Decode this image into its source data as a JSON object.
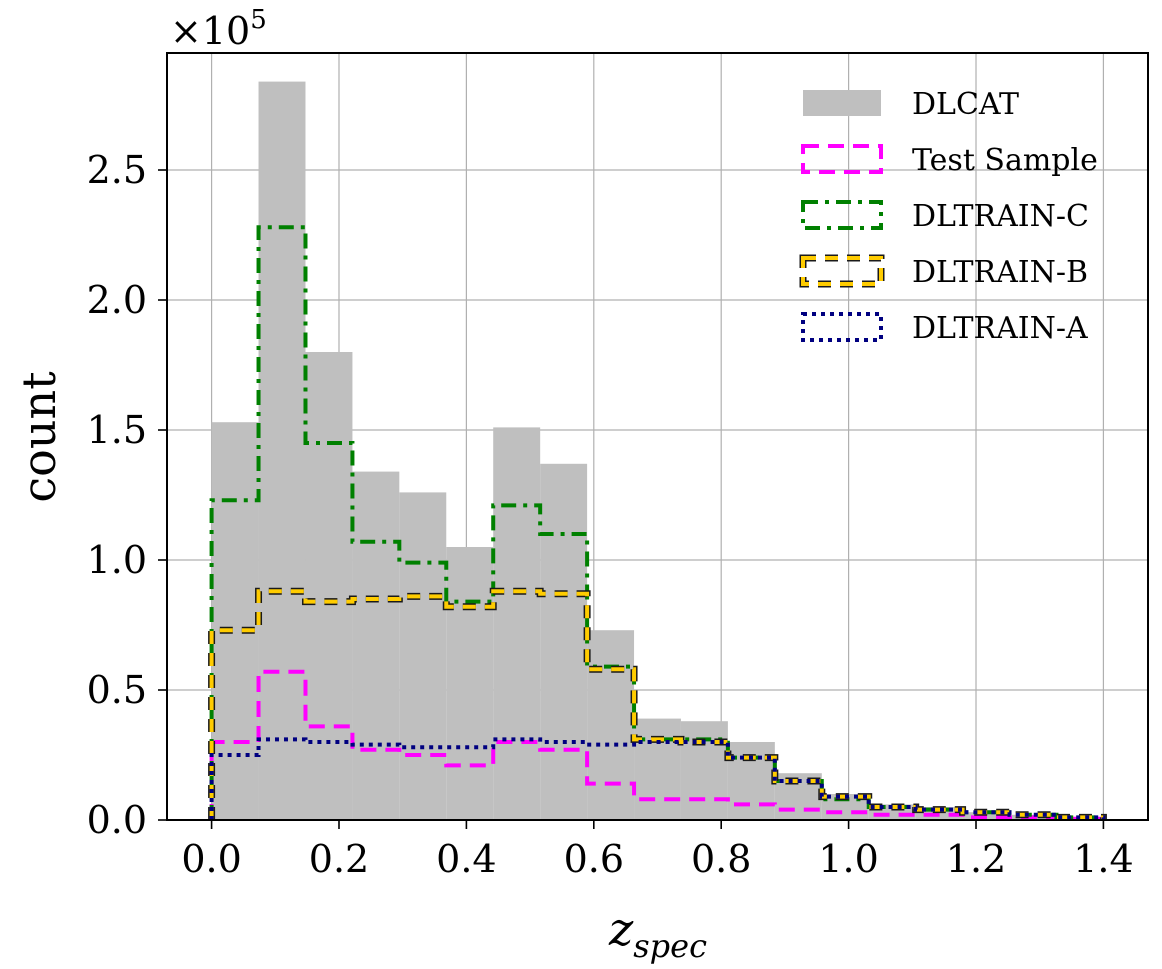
{
  "chart_data": {
    "type": "bar",
    "xlabel": "z",
    "xlabel_sub": "spec",
    "ylabel": "count",
    "y_multiplier_label": "×10",
    "y_multiplier_exp": "5",
    "xlim": [
      -0.07,
      1.47
    ],
    "ylim": [
      0,
      2.95
    ],
    "x_ticks": [
      0.0,
      0.2,
      0.4,
      0.6,
      0.8,
      1.0,
      1.2,
      1.4
    ],
    "x_tick_labels": [
      "0.0",
      "0.2",
      "0.4",
      "0.6",
      "0.8",
      "1.0",
      "1.2",
      "1.4"
    ],
    "y_ticks": [
      0.0,
      0.5,
      1.0,
      1.5,
      2.0,
      2.5
    ],
    "y_tick_labels": [
      "0.0",
      "0.5",
      "1.0",
      "1.5",
      "2.0",
      "2.5"
    ],
    "grid": true,
    "legend_position": "top-right",
    "bin_edges": [
      0.0,
      0.0737,
      0.1474,
      0.2211,
      0.2947,
      0.3684,
      0.4421,
      0.5158,
      0.5895,
      0.6632,
      0.7368,
      0.8105,
      0.8842,
      0.9579,
      1.0316,
      1.1053,
      1.1789,
      1.2526,
      1.3263,
      1.4
    ],
    "series": [
      {
        "name": "DLCAT",
        "style": "filled",
        "color": "#bfbfbf",
        "values": [
          1.53,
          2.84,
          1.8,
          1.34,
          1.26,
          1.05,
          1.51,
          1.37,
          0.73,
          0.39,
          0.38,
          0.3,
          0.18,
          0.1,
          0.06,
          0.05,
          0.03,
          0.02,
          0.01
        ]
      },
      {
        "name": "Test Sample",
        "style": "dashed",
        "color": "#ff00ff",
        "values": [
          0.3,
          0.57,
          0.36,
          0.27,
          0.25,
          0.21,
          0.3,
          0.27,
          0.14,
          0.08,
          0.08,
          0.06,
          0.04,
          0.03,
          0.02,
          0.02,
          0.01,
          0.01,
          0.005
        ]
      },
      {
        "name": "DLTRAIN-C",
        "style": "dashdot",
        "color": "#008000",
        "values": [
          1.23,
          2.28,
          1.45,
          1.07,
          0.99,
          0.84,
          1.21,
          1.1,
          0.59,
          0.31,
          0.31,
          0.24,
          0.15,
          0.08,
          0.05,
          0.04,
          0.03,
          0.02,
          0.01
        ]
      },
      {
        "name": "DLTRAIN-B",
        "style": "yellow-dashed",
        "color": "#ffcc00",
        "values": [
          0.73,
          0.88,
          0.84,
          0.85,
          0.86,
          0.82,
          0.88,
          0.87,
          0.58,
          0.31,
          0.3,
          0.24,
          0.15,
          0.09,
          0.05,
          0.04,
          0.03,
          0.02,
          0.01
        ]
      },
      {
        "name": "DLTRAIN-A",
        "style": "dotted",
        "color": "#000080",
        "values": [
          0.25,
          0.31,
          0.3,
          0.29,
          0.28,
          0.28,
          0.31,
          0.3,
          0.29,
          0.3,
          0.3,
          0.24,
          0.15,
          0.09,
          0.05,
          0.04,
          0.03,
          0.02,
          0.01
        ]
      }
    ]
  }
}
